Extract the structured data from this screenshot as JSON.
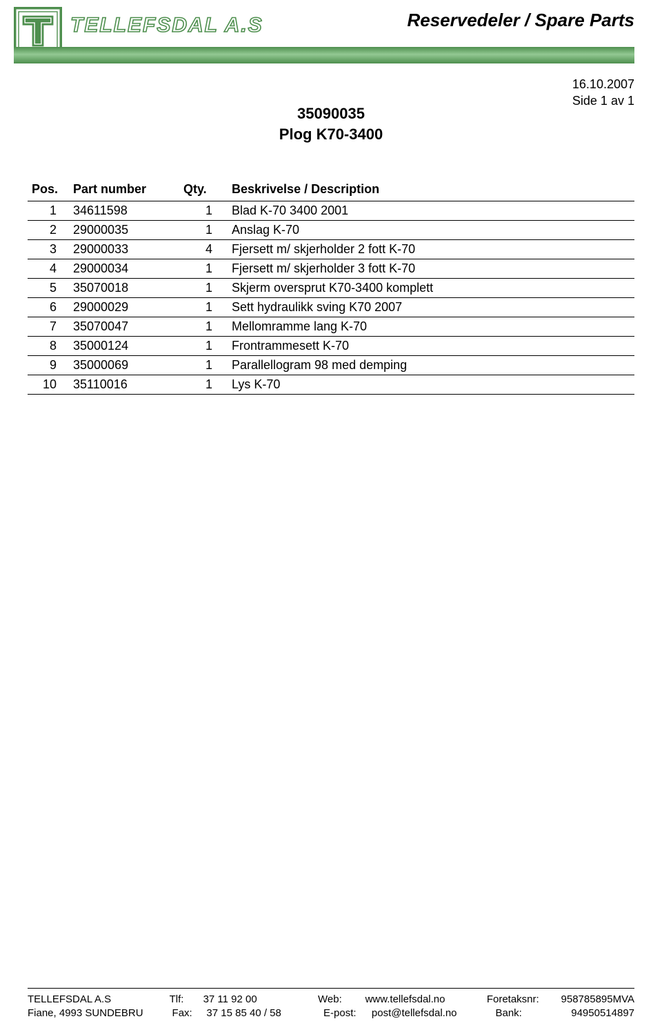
{
  "header": {
    "company_text_svg_label": "TELLEFSDAL A.S",
    "page_title": "Reservedeler / Spare Parts",
    "logo_colors": {
      "outer": "#4e8f4e",
      "inner_fill": "#ffffff",
      "letter": "#4e8f4e"
    },
    "company_name_color": "#4e8f4e"
  },
  "meta": {
    "date": "16.10.2007",
    "page_info": "Side 1 av 1"
  },
  "document": {
    "doc_number": "35090035",
    "doc_title": "Plog K70-3400"
  },
  "table": {
    "header": {
      "pos": "Pos.",
      "part": "Part number",
      "qty": "Qty.",
      "desc": "Beskrivelse / Description"
    },
    "rows": [
      {
        "pos": "1",
        "part": "34611598",
        "qty": "1",
        "desc": "Blad K-70 3400 2001"
      },
      {
        "pos": "2",
        "part": "29000035",
        "qty": "1",
        "desc": "Anslag K-70"
      },
      {
        "pos": "3",
        "part": "29000033",
        "qty": "4",
        "desc": "Fjersett m/ skjerholder 2 fott K-70"
      },
      {
        "pos": "4",
        "part": "29000034",
        "qty": "1",
        "desc": "Fjersett m/ skjerholder 3 fott K-70"
      },
      {
        "pos": "5",
        "part": "35070018",
        "qty": "1",
        "desc": "Skjerm oversprut K70-3400 komplett"
      },
      {
        "pos": "6",
        "part": "29000029",
        "qty": "1",
        "desc": "Sett hydraulikk sving K70 2007"
      },
      {
        "pos": "7",
        "part": "35070047",
        "qty": "1",
        "desc": "Mellomramme lang K-70"
      },
      {
        "pos": "8",
        "part": "35000124",
        "qty": "1",
        "desc": "Frontrammesett K-70"
      },
      {
        "pos": "9",
        "part": "35000069",
        "qty": "1",
        "desc": "Parallellogram 98 med demping"
      },
      {
        "pos": "10",
        "part": "35110016",
        "qty": "1",
        "desc": "Lys K-70"
      }
    ]
  },
  "footer": {
    "line1": {
      "company": "TELLEFSDAL A.S",
      "tlf_label": "Tlf:",
      "tlf_value": "37 11 92 00",
      "web_label": "Web:",
      "web_value": "www.tellefsdal.no",
      "org_label": "Foretaksnr:",
      "org_value": "958785895MVA"
    },
    "line2": {
      "address": "Fiane,  4993  SUNDEBRU",
      "fax_label": "Fax:",
      "fax_value": "37 15 85 40 / 58",
      "email_label": "E-post:",
      "email_value": "post@tellefsdal.no",
      "bank_label": "Bank:",
      "bank_value": "94950514897"
    }
  }
}
